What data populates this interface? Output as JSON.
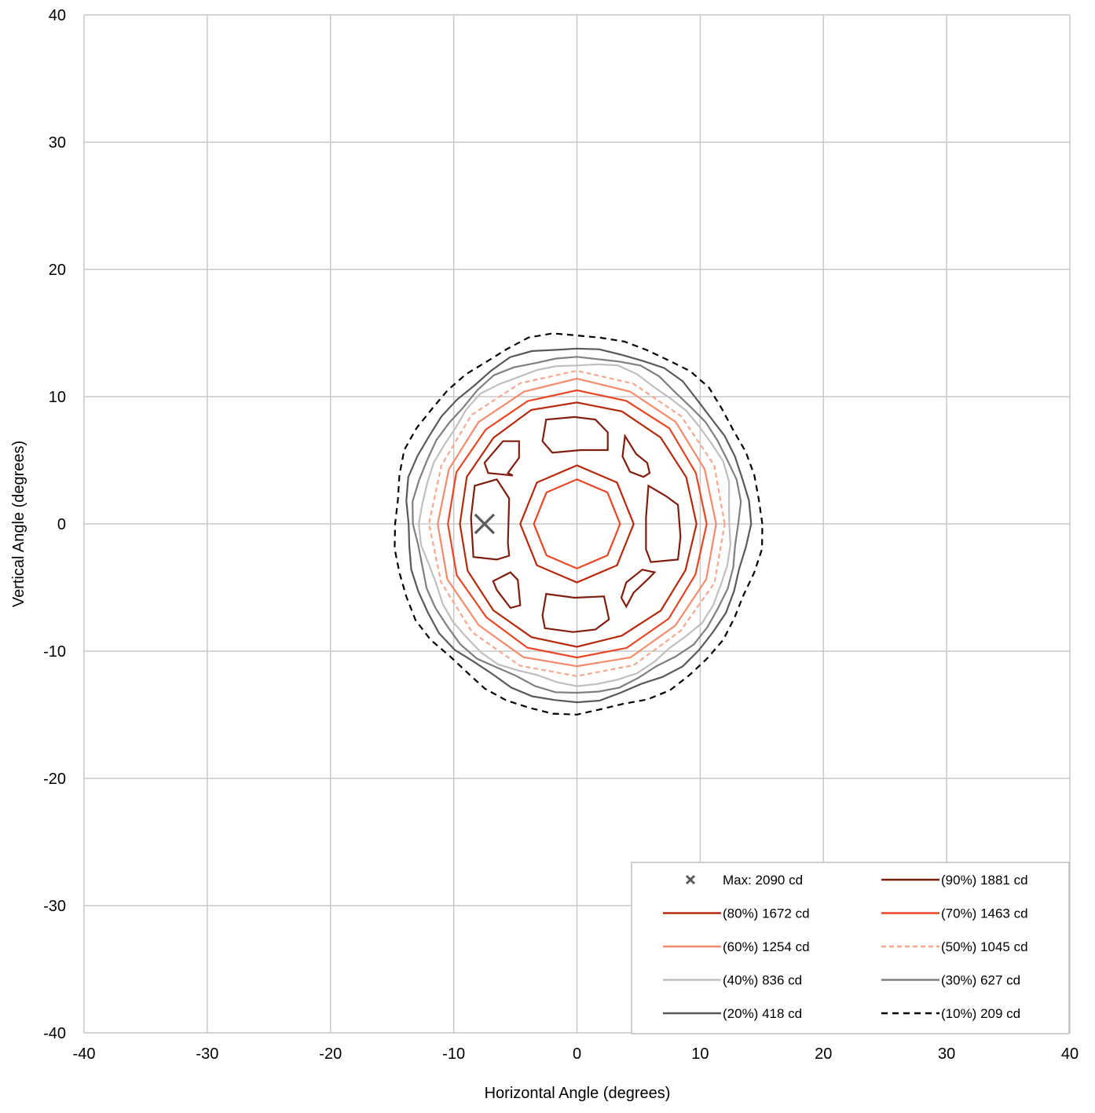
{
  "chart_data": {
    "type": "contour",
    "title": "",
    "xlabel": "Horizontal Angle (degrees)",
    "ylabel": "Vertical Angle (degrees)",
    "xlim": [
      -40,
      40
    ],
    "ylim": [
      -40,
      40
    ],
    "xticks": [
      -40,
      -30,
      -20,
      -10,
      0,
      10,
      20,
      30,
      40
    ],
    "yticks": [
      -40,
      -30,
      -20,
      -10,
      0,
      10,
      20,
      30,
      40
    ],
    "x_tick_labels": [
      "-40",
      "-30",
      "-20",
      "-10",
      "0",
      "10",
      "20",
      "30",
      "40"
    ],
    "y_tick_labels": [
      "-40",
      "-30",
      "-20",
      "-10",
      "0",
      "10",
      "20",
      "30",
      "40"
    ],
    "grid": true,
    "legend_position": "bottom-right",
    "max_point": {
      "label": "Max: 2090 cd",
      "x": -7.5,
      "y": 0,
      "value": 2090,
      "color": "#595959"
    },
    "series": [
      {
        "name": "(90%) 1881 cd",
        "color": "#7f1d0e",
        "dash": "",
        "shape": "fragments"
      },
      {
        "name": "(80%) 1672 cd",
        "color": "#b7290d",
        "dash": "",
        "radius": 9.6
      },
      {
        "name": "(70%) 1463 cd",
        "color": "#e84624",
        "dash": "",
        "radius": 10.5
      },
      {
        "name": "(60%) 1254 cd",
        "color": "#f48b6c",
        "dash": "",
        "radius": 11.3
      },
      {
        "name": "(50%) 1045 cd",
        "color": "#f6a890",
        "dash": "6,4",
        "radius": 12.0
      },
      {
        "name": "(40%) 836 cd",
        "color": "#bfbfbf",
        "dash": "",
        "radius": 12.6
      },
      {
        "name": "(30%) 627 cd",
        "color": "#7f7f7f",
        "dash": "",
        "radius": 13.2
      },
      {
        "name": "(20%) 418 cd",
        "color": "#595959",
        "dash": "",
        "radius": 13.9
      },
      {
        "name": "(10%) 209 cd",
        "color": "#000000",
        "dash": "8,6",
        "radius": 14.9
      }
    ],
    "inner_rings": [
      {
        "color": "#e84624",
        "radius": 3.5
      },
      {
        "color": "#b7290d",
        "radius": 4.6
      }
    ]
  },
  "colors": {
    "grid": "#c8c8c8",
    "frame": "#bfbfbf"
  }
}
